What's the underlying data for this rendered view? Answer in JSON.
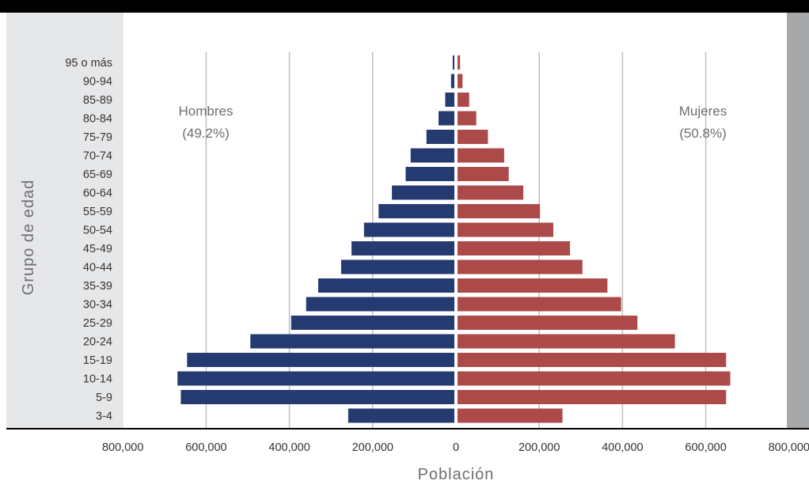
{
  "chart_data": {
    "type": "bar",
    "orientation": "horizontal-diverging",
    "ylabel": "Grupo de edad",
    "xlabel": "Población",
    "xlim": [
      -800000,
      800000
    ],
    "xticks": [
      -800000,
      -600000,
      -400000,
      -200000,
      0,
      200000,
      400000,
      600000,
      800000
    ],
    "xtick_labels": [
      "800,000",
      "600,000",
      "400,000",
      "200,000",
      "0",
      "200,000",
      "400,000",
      "600,000",
      "800,000"
    ],
    "grid": "vertical",
    "categories": [
      "95 o más",
      "90-94",
      "85-89",
      "80-84",
      "75-79",
      "70-74",
      "65-69",
      "60-64",
      "55-59",
      "50-54",
      "45-49",
      "40-44",
      "35-39",
      "30-34",
      "25-29",
      "20-24",
      "15-19",
      "10-14",
      "5-9",
      "3-4"
    ],
    "series": [
      {
        "name": "Hombres",
        "share_label": "(49.2%)",
        "color": "#253A70",
        "values": [
          4000,
          8000,
          22000,
          38000,
          67000,
          105000,
          117000,
          150000,
          182000,
          217000,
          247000,
          272000,
          327000,
          356000,
          392000,
          490000,
          642000,
          665000,
          657000,
          255000
        ]
      },
      {
        "name": "Mujeres",
        "share_label": "(50.8%)",
        "color": "#AC4A4A",
        "values": [
          6000,
          12000,
          28000,
          45000,
          73000,
          112000,
          123000,
          158000,
          198000,
          230000,
          270000,
          300000,
          360000,
          393000,
          432000,
          522000,
          645000,
          655000,
          645000,
          252000
        ]
      }
    ]
  },
  "colors": {
    "top_bar": "#000000",
    "left_panel": "#E6E7E9",
    "right_panel": "#A6A8AA",
    "gridline": "#BEBEBE",
    "text": "#333333",
    "label_gray": "#6D6E71"
  }
}
